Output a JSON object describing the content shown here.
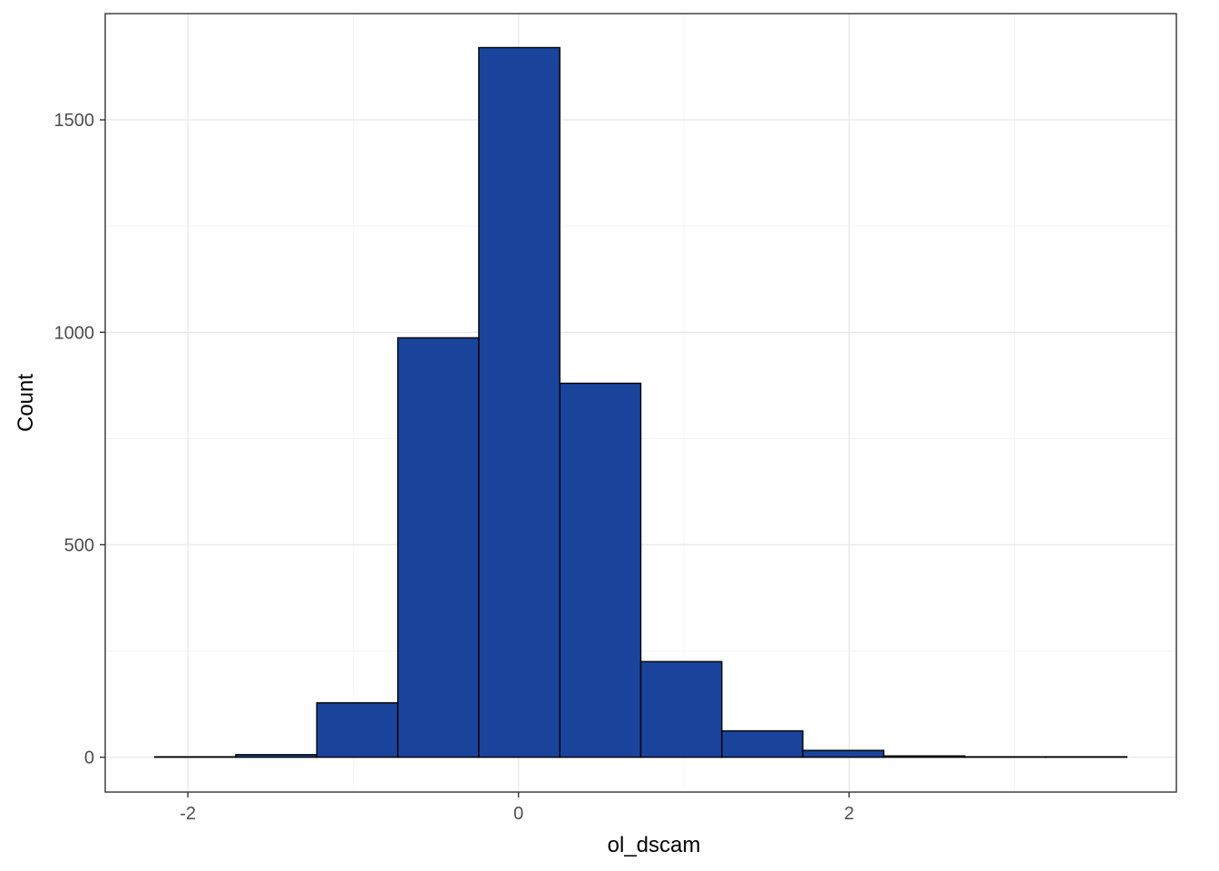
{
  "chart_data": {
    "type": "bar",
    "subtype": "histogram",
    "title": "",
    "xlabel": "ol_dscam",
    "ylabel": "Count",
    "bin_width": 0.49,
    "bins": [
      {
        "x0": -2.2,
        "x1": -1.71,
        "count": 1
      },
      {
        "x0": -1.71,
        "x1": -1.22,
        "count": 6
      },
      {
        "x0": -1.22,
        "x1": -0.73,
        "count": 128
      },
      {
        "x0": -0.73,
        "x1": -0.24,
        "count": 987
      },
      {
        "x0": -0.24,
        "x1": 0.25,
        "count": 1670
      },
      {
        "x0": 0.25,
        "x1": 0.74,
        "count": 880
      },
      {
        "x0": 0.74,
        "x1": 1.23,
        "count": 225
      },
      {
        "x0": 1.23,
        "x1": 1.72,
        "count": 62
      },
      {
        "x0": 1.72,
        "x1": 2.21,
        "count": 16
      },
      {
        "x0": 2.21,
        "x1": 2.7,
        "count": 3
      },
      {
        "x0": 2.7,
        "x1": 3.19,
        "count": 1
      },
      {
        "x0": 3.19,
        "x1": 3.68,
        "count": 1
      }
    ],
    "xlim": [
      -2.5,
      3.98
    ],
    "ylim": [
      -82,
      1750
    ],
    "x_ticks": [
      {
        "value": -2,
        "label": "-2"
      },
      {
        "value": 0,
        "label": "0"
      },
      {
        "value": 2,
        "label": "2"
      }
    ],
    "x_minor_ticks": [
      -1,
      1,
      3
    ],
    "y_ticks": [
      {
        "value": 0,
        "label": "0"
      },
      {
        "value": 500,
        "label": "500"
      },
      {
        "value": 1000,
        "label": "1000"
      },
      {
        "value": 1500,
        "label": "1500"
      }
    ],
    "y_minor_ticks": [
      250,
      750,
      1250
    ],
    "grid": true,
    "legend": "none",
    "colors": {
      "bar_fill": "#1a449c",
      "bar_stroke": "#000000",
      "grid_major": "#ebebeb",
      "grid_minor": "#f5f5f5",
      "panel_border": "#333333",
      "tick_text": "#4d4d4d",
      "axis_title": "#000000"
    }
  }
}
